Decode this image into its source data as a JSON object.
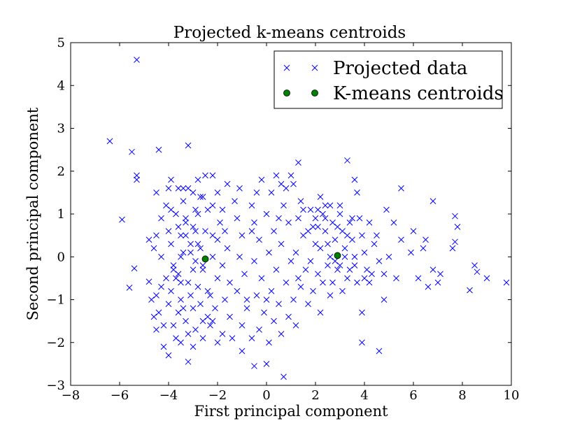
{
  "chart_data": {
    "type": "scatter",
    "title": "Projected k-means centroids",
    "xlabel": "First principal component",
    "ylabel": "Second principal component",
    "xlim": [
      -8,
      10
    ],
    "ylim": [
      -3,
      5
    ],
    "xticks": [
      -8,
      -6,
      -4,
      -2,
      0,
      2,
      4,
      6,
      8,
      10
    ],
    "yticks": [
      -3,
      -2,
      -1,
      0,
      1,
      2,
      3,
      4,
      5
    ],
    "legend_position": "top-right",
    "grid": false,
    "series": [
      {
        "name": "Projected data",
        "marker": "x",
        "color": "#0000ff",
        "points": [
          [
            -5.3,
            4.6
          ],
          [
            -6.4,
            2.7
          ],
          [
            -5.5,
            2.45
          ],
          [
            -4.4,
            2.5
          ],
          [
            -3.2,
            2.6
          ],
          [
            -5.3,
            1.9
          ],
          [
            -5.3,
            1.8
          ],
          [
            -5.9,
            0.87
          ],
          [
            -4.8,
            0.4
          ],
          [
            -5.4,
            -0.27
          ],
          [
            -5.6,
            -0.72
          ],
          [
            -4.8,
            -0.58
          ],
          [
            -4.6,
            -1.4
          ],
          [
            -4.2,
            -2.1
          ],
          [
            -4.0,
            -2.3
          ],
          [
            -3.2,
            -2.45
          ],
          [
            -3.7,
            -1.9
          ],
          [
            -4.2,
            -1.6
          ],
          [
            -4.4,
            -1.3
          ],
          [
            -4.5,
            -0.9
          ],
          [
            -4.1,
            -0.5
          ],
          [
            -4.3,
            0.0
          ],
          [
            -4.5,
            0.5
          ],
          [
            -4.3,
            0.9
          ],
          [
            -4.1,
            1.2
          ],
          [
            -4.5,
            1.5
          ],
          [
            -4.0,
            1.6
          ],
          [
            -3.9,
            1.8
          ],
          [
            -3.6,
            1.6
          ],
          [
            -3.4,
            1.3
          ],
          [
            -3.7,
            1.0
          ],
          [
            -3.3,
            0.8
          ],
          [
            -3.5,
            0.5
          ],
          [
            -3.1,
            0.3
          ],
          [
            -3.4,
            0.1
          ],
          [
            -3.8,
            -0.2
          ],
          [
            -3.6,
            -0.4
          ],
          [
            -3.2,
            -0.6
          ],
          [
            -3.9,
            -0.8
          ],
          [
            -3.5,
            -1.0
          ],
          [
            -3.0,
            -1.2
          ],
          [
            -3.6,
            -1.3
          ],
          [
            -3.3,
            -1.5
          ],
          [
            -2.9,
            -1.7
          ],
          [
            -3.1,
            -0.9
          ],
          [
            -2.9,
            0.6
          ],
          [
            -2.8,
            1.0
          ],
          [
            -2.6,
            1.4
          ],
          [
            -2.5,
            1.9
          ],
          [
            -2.8,
            1.8
          ],
          [
            -3.0,
            1.5
          ],
          [
            -2.9,
            1.1
          ],
          [
            -2.7,
            0.2
          ],
          [
            -2.6,
            -0.3
          ],
          [
            -2.8,
            -0.7
          ],
          [
            -2.7,
            -1.1
          ],
          [
            -2.4,
            -1.4
          ],
          [
            -2.6,
            -1.9
          ],
          [
            -2.3,
            -1.6
          ],
          [
            -2.1,
            -1.2
          ],
          [
            -2.3,
            -0.9
          ],
          [
            -2.0,
            -0.5
          ],
          [
            -2.2,
            0.0
          ],
          [
            -2.0,
            0.4
          ],
          [
            -1.9,
            0.8
          ],
          [
            -2.2,
            1.2
          ],
          [
            -2.0,
            1.5
          ],
          [
            -1.8,
            1.1
          ],
          [
            -1.7,
            0.6
          ],
          [
            -1.6,
            0.2
          ],
          [
            -1.8,
            -0.2
          ],
          [
            -1.5,
            -0.6
          ],
          [
            -1.7,
            -1.0
          ],
          [
            -1.5,
            -1.4
          ],
          [
            -1.8,
            -1.8
          ],
          [
            -2.0,
            -2.0
          ],
          [
            -1.4,
            -1.9
          ],
          [
            -1.6,
            1.7
          ],
          [
            -2.2,
            1.9
          ],
          [
            -3.5,
            0.0
          ],
          [
            -3.0,
            -0.3
          ],
          [
            -3.3,
            0.9
          ],
          [
            -3.9,
            0.3
          ],
          [
            -4.0,
            -1.1
          ],
          [
            -3.8,
            -1.6
          ],
          [
            -4.3,
            -0.7
          ],
          [
            -3.0,
            0.7
          ],
          [
            -2.5,
            0.6
          ],
          [
            -2.4,
            1.1
          ],
          [
            -3.2,
            1.6
          ],
          [
            -3.6,
            0.7
          ],
          [
            -2.9,
            -0.1
          ],
          [
            -2.4,
            -0.8
          ],
          [
            -3.4,
            -1.2
          ],
          [
            -3.7,
            -0.5
          ],
          [
            -4.6,
            0.2
          ],
          [
            -4.7,
            -1.0
          ],
          [
            -4.5,
            -1.7
          ],
          [
            -3.5,
            -2.0
          ],
          [
            -3.0,
            -2.1
          ],
          [
            -2.6,
            -1.5
          ],
          [
            -2.2,
            -1.5
          ],
          [
            -1.3,
            1.3
          ],
          [
            -1.2,
            0.9
          ],
          [
            -1.0,
            0.5
          ],
          [
            -1.1,
            0.0
          ],
          [
            -0.9,
            -0.4
          ],
          [
            -1.2,
            -0.8
          ],
          [
            -0.8,
            -1.2
          ],
          [
            -1.0,
            -1.6
          ],
          [
            -0.6,
            -1.9
          ],
          [
            -1.0,
            -2.2
          ],
          [
            -0.8,
            -1.0
          ],
          [
            -0.6,
            1.2
          ],
          [
            -0.5,
            0.8
          ],
          [
            -0.3,
            0.4
          ],
          [
            -0.5,
            -0.1
          ],
          [
            -0.2,
            -0.5
          ],
          [
            -0.4,
            -0.9
          ],
          [
            -0.1,
            -1.3
          ],
          [
            -0.3,
            -1.7
          ],
          [
            0.1,
            -2.0
          ],
          [
            0.2,
            1.5
          ],
          [
            0.0,
            1.0
          ],
          [
            0.3,
            0.6
          ],
          [
            0.1,
            0.1
          ],
          [
            0.4,
            -0.3
          ],
          [
            0.2,
            -0.8
          ],
          [
            0.5,
            -1.1
          ],
          [
            0.3,
            -1.5
          ],
          [
            0.6,
            -1.8
          ],
          [
            0.8,
            1.6
          ],
          [
            0.7,
            1.2
          ],
          [
            0.9,
            0.8
          ],
          [
            0.6,
            0.3
          ],
          [
            1.0,
            -0.1
          ],
          [
            0.8,
            -0.6
          ],
          [
            1.1,
            -1.0
          ],
          [
            0.9,
            -1.4
          ],
          [
            1.2,
            -1.6
          ],
          [
            0.7,
            -2.8
          ],
          [
            -0.5,
            -2.55
          ],
          [
            0.0,
            -2.5
          ],
          [
            1.3,
            2.2
          ],
          [
            1.1,
            1.7
          ],
          [
            1.4,
            1.3
          ],
          [
            1.3,
            0.9
          ],
          [
            1.5,
            0.5
          ],
          [
            1.2,
            0.1
          ],
          [
            1.6,
            -0.3
          ],
          [
            1.4,
            -0.7
          ],
          [
            1.7,
            -1.1
          ],
          [
            1.8,
            1.1
          ],
          [
            1.9,
            0.7
          ],
          [
            2.0,
            0.3
          ],
          [
            1.8,
            -0.1
          ],
          [
            2.1,
            -0.4
          ],
          [
            1.9,
            -0.8
          ],
          [
            2.2,
            1.4
          ],
          [
            2.3,
            1.0
          ],
          [
            2.4,
            0.6
          ],
          [
            2.2,
            0.2
          ],
          [
            2.5,
            -0.2
          ],
          [
            2.3,
            -0.6
          ],
          [
            2.6,
            -0.9
          ],
          [
            2.4,
            1.2
          ],
          [
            2.7,
            0.8
          ],
          [
            2.8,
            0.4
          ],
          [
            2.6,
            0.0
          ],
          [
            2.9,
            -0.3
          ],
          [
            2.7,
            -0.6
          ],
          [
            3.0,
            1.0
          ],
          [
            3.1,
            0.6
          ],
          [
            3.2,
            0.2
          ],
          [
            3.0,
            -0.2
          ],
          [
            3.3,
            -0.5
          ],
          [
            3.1,
            -0.8
          ],
          [
            3.4,
            0.8
          ],
          [
            3.5,
            0.4
          ],
          [
            3.6,
            0.0
          ],
          [
            3.4,
            -0.3
          ],
          [
            3.7,
            -0.6
          ],
          [
            3.8,
            0.9
          ],
          [
            3.9,
            0.5
          ],
          [
            4.0,
            0.1
          ],
          [
            4.1,
            -0.3
          ],
          [
            4.2,
            -0.6
          ],
          [
            4.4,
            0.3
          ],
          [
            4.6,
            -0.1
          ],
          [
            4.8,
            -0.4
          ],
          [
            5.0,
            0.0
          ],
          [
            5.3,
            -0.5
          ],
          [
            5.5,
            0.4
          ],
          [
            5.2,
            0.8
          ],
          [
            5.5,
            1.6
          ],
          [
            4.9,
            1.1
          ],
          [
            3.3,
            2.25
          ],
          [
            3.6,
            1.8
          ],
          [
            3.7,
            1.5
          ],
          [
            3.9,
            -1.3
          ],
          [
            3.9,
            -2.0
          ],
          [
            4.6,
            -2.2
          ],
          [
            4.8,
            -1.0
          ],
          [
            5.9,
            0.1
          ],
          [
            6.2,
            -0.5
          ],
          [
            6.4,
            0.2
          ],
          [
            6.6,
            -0.7
          ],
          [
            6.8,
            -0.3
          ],
          [
            6.5,
            0.4
          ],
          [
            6.0,
            0.6
          ],
          [
            6.8,
            1.3
          ],
          [
            7.7,
            0.95
          ],
          [
            7.8,
            0.7
          ],
          [
            7.7,
            0.35
          ],
          [
            7.6,
            0.2
          ],
          [
            7.1,
            -0.4
          ],
          [
            7.0,
            -0.6
          ],
          [
            8.3,
            -0.78
          ],
          [
            8.5,
            -0.2
          ],
          [
            8.6,
            -0.35
          ],
          [
            9.0,
            -0.5
          ],
          [
            9.8,
            -0.6
          ],
          [
            1.0,
            1.9
          ],
          [
            0.6,
            1.7
          ],
          [
            -0.4,
            1.5
          ],
          [
            -1.1,
            1.6
          ],
          [
            2.2,
            -1.3
          ],
          [
            2.4,
            0.9
          ],
          [
            2.0,
            0.9
          ],
          [
            2.8,
            -0.1
          ],
          [
            3.2,
            0.0
          ],
          [
            2.5,
            0.3
          ],
          [
            3.6,
            -0.2
          ],
          [
            4.3,
            -0.4
          ],
          [
            1.5,
            1.1
          ],
          [
            2.1,
            1.1
          ],
          [
            1.7,
            0.6
          ],
          [
            2.9,
            0.7
          ],
          [
            3.3,
            0.5
          ],
          [
            4.0,
            -0.5
          ],
          [
            -3.1,
            0.1
          ],
          [
            -2.8,
            0.3
          ],
          [
            -3.3,
            0.5
          ],
          [
            -2.2,
            0.5
          ],
          [
            -2.6,
            -0.2
          ],
          [
            -3.5,
            -0.6
          ],
          [
            -3.9,
            1.1
          ],
          [
            -3.4,
            1.6
          ],
          [
            -2.7,
            1.4
          ],
          [
            -3.8,
            -0.3
          ],
          [
            -4.0,
            0.6
          ],
          [
            -3.2,
            -1.8
          ],
          [
            -0.2,
            1.8
          ],
          [
            0.4,
            1.9
          ],
          [
            -0.6,
            0.6
          ],
          [
            0.0,
            -1.0
          ],
          [
            0.5,
            0.9
          ],
          [
            1.3,
            -0.5
          ],
          [
            2.6,
            1.2
          ],
          [
            3.0,
            1.2
          ],
          [
            2.1,
            0.7
          ],
          [
            3.5,
            0.9
          ],
          [
            4.5,
            0.5
          ],
          [
            4.2,
            0.8
          ]
        ]
      },
      {
        "name": "K-means centroids",
        "marker": "circle",
        "color": "#008000",
        "points": [
          [
            -2.5,
            -0.05
          ],
          [
            2.9,
            0.03
          ]
        ]
      }
    ]
  }
}
